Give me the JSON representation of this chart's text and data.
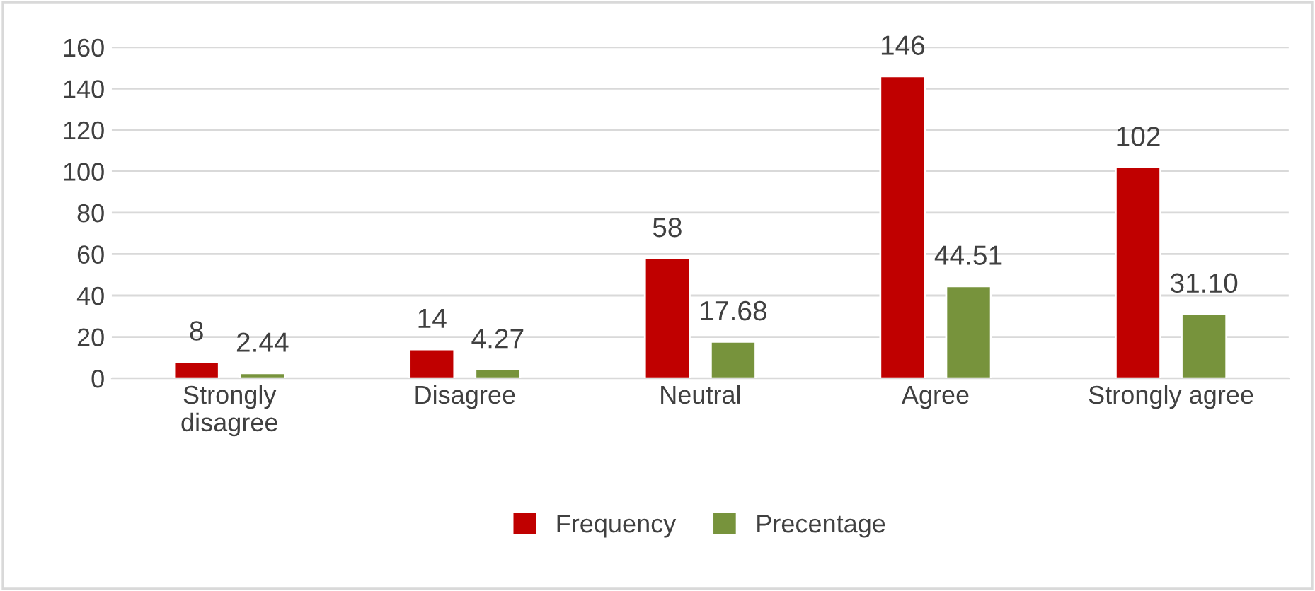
{
  "chart_data": {
    "type": "bar",
    "categories": [
      "Strongly\ndisagree",
      "Disagree",
      "Neutral",
      "Agree",
      "Strongly agree"
    ],
    "series": [
      {
        "name": "Frequency",
        "color": "#c00000",
        "values": [
          8,
          14,
          58,
          146,
          102
        ],
        "value_labels": [
          "8",
          "14",
          "58",
          "146",
          "102"
        ]
      },
      {
        "name": "Precentage",
        "color": "#77933c",
        "values": [
          2.44,
          4.27,
          17.68,
          44.51,
          31.1
        ],
        "value_labels": [
          "2.44",
          "4.27",
          "17.68",
          "44.51",
          "31.10"
        ]
      }
    ],
    "ylim": [
      0,
      160
    ],
    "yticks": [
      0,
      20,
      40,
      60,
      80,
      100,
      120,
      140,
      160
    ],
    "grid": "y",
    "legend": "bottom"
  }
}
